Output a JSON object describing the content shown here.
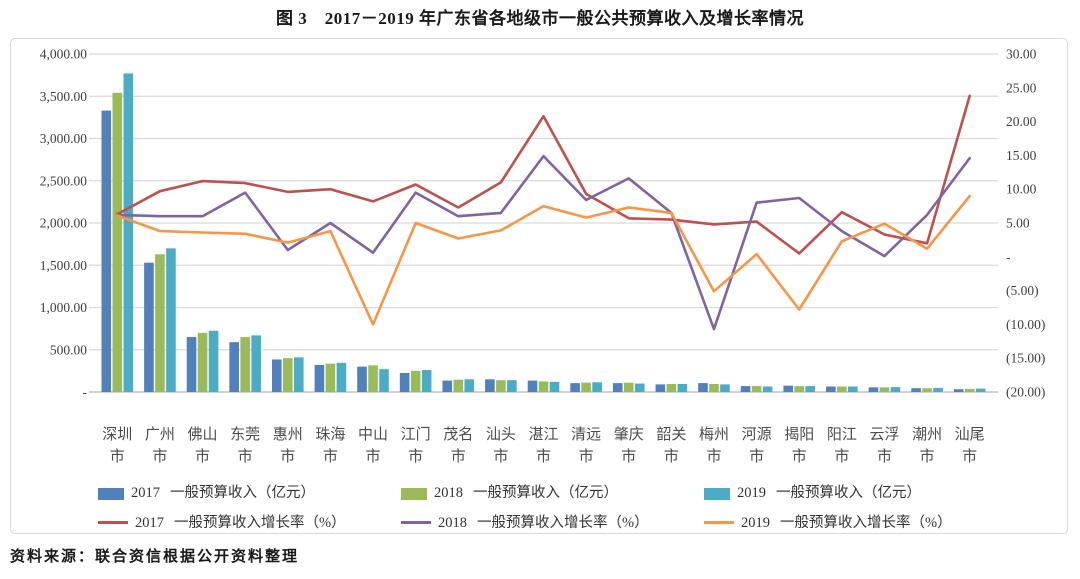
{
  "title": "图 3　2017－2019 年广东省各地级市一般公共预算收入及增长率情况",
  "source": "资料来源：联合资信根据公开资料整理",
  "colors": {
    "bar_2017": "#4F81BD",
    "bar_2018": "#9BBB59",
    "bar_2019": "#4BACC6",
    "line_2017": "#C0504D",
    "line_2018": "#8064A2",
    "line_2019": "#F79646",
    "gridline": "#d9d9d9",
    "axis_text": "#404040"
  },
  "chart_data": {
    "type": "bar",
    "subtype": "grouped-bars-with-lines-dual-axis",
    "categories": [
      "深圳市",
      "广州市",
      "佛山市",
      "东莞市",
      "惠州市",
      "珠海市",
      "中山市",
      "江门市",
      "茂名市",
      "汕头市",
      "湛江市",
      "清远市",
      "肇庆市",
      "韶关市",
      "梅州市",
      "河源市",
      "揭阳市",
      "阳江市",
      "云浮市",
      "潮州市",
      "汕尾市"
    ],
    "bar_series": [
      {
        "year": "2017",
        "label": "一般预算收入（亿元）",
        "color": "#4F81BD",
        "axis": "left",
        "values": [
          3330,
          1530,
          650,
          590,
          385,
          320,
          300,
          225,
          135,
          150,
          135,
          105,
          105,
          90,
          105,
          70,
          75,
          65,
          55,
          45,
          33
        ]
      },
      {
        "year": "2018",
        "label": "一般预算收入（亿元）",
        "color": "#9BBB59",
        "axis": "left",
        "values": [
          3540,
          1630,
          700,
          650,
          400,
          335,
          315,
          250,
          145,
          140,
          125,
          110,
          110,
          95,
          95,
          70,
          70,
          65,
          55,
          45,
          36
        ]
      },
      {
        "year": "2019",
        "label": "一般预算收入（亿元）",
        "color": "#4BACC6",
        "axis": "left",
        "values": [
          3770,
          1700,
          725,
          670,
          410,
          345,
          270,
          260,
          150,
          140,
          120,
          115,
          100,
          95,
          90,
          65,
          70,
          65,
          58,
          48,
          40
        ]
      }
    ],
    "line_series": [
      {
        "year": "2017",
        "label": "一般预算收入增长率（%）",
        "color": "#C0504D",
        "axis": "right",
        "values": [
          6.3,
          9.7,
          11.2,
          10.9,
          9.6,
          10.0,
          8.2,
          10.7,
          7.3,
          11.0,
          20.8,
          9.3,
          5.7,
          5.5,
          4.8,
          5.2,
          0.5,
          6.6,
          3.3,
          2.0,
          23.8
        ]
      },
      {
        "year": "2018",
        "label": "一般预算收入增长率（%）",
        "color": "#8064A2",
        "axis": "right",
        "values": [
          6.2,
          6.0,
          6.0,
          9.5,
          1.0,
          5.0,
          0.6,
          9.5,
          6.0,
          6.5,
          14.9,
          8.4,
          11.6,
          6.5,
          -10.7,
          8.0,
          8.7,
          3.8,
          0.1,
          6.2,
          14.6
        ]
      },
      {
        "year": "2019",
        "label": "一般预算收入增长率（%）",
        "color": "#F79646",
        "axis": "right",
        "values": [
          6.1,
          3.8,
          3.6,
          3.4,
          2.1,
          3.8,
          -10.0,
          5.0,
          2.7,
          3.9,
          7.5,
          5.8,
          7.3,
          6.5,
          -5.1,
          0.4,
          -7.8,
          2.3,
          4.9,
          1.2,
          9.0
        ]
      }
    ],
    "left_axis": {
      "min": 0,
      "max": 4000,
      "step": 500,
      "tick_labels": [
        "4,000.00",
        "3,500.00",
        "3,000.00",
        "2,500.00",
        "2,000.00",
        "1,500.00",
        "1,000.00",
        "500.00",
        "-"
      ]
    },
    "right_axis": {
      "min": -20,
      "max": 30,
      "step": 5,
      "tick_labels": [
        "30.00",
        "25.00",
        "20.00",
        "15.00",
        "10.00",
        "5.00",
        "-",
        "(5.00)",
        "(10.00)",
        "(15.00)",
        "(20.00)"
      ]
    },
    "grid": true,
    "legend_position": "bottom"
  }
}
